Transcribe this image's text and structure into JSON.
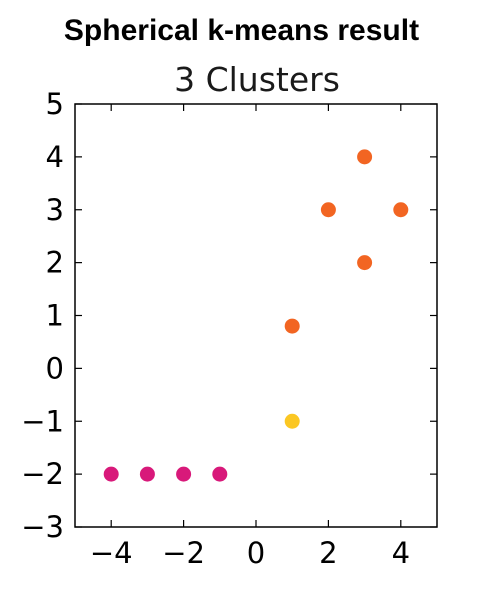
{
  "heading": "Spherical k-means result",
  "chart_data": {
    "type": "scatter",
    "title": "3 Clusters",
    "xlabel": "",
    "ylabel": "",
    "xlim": [
      -5,
      5
    ],
    "ylim": [
      -3,
      5
    ],
    "xticks": [
      -4,
      -2,
      0,
      2,
      4
    ],
    "yticks": [
      -3,
      -2,
      -1,
      0,
      1,
      2,
      3,
      4,
      5
    ],
    "grid": false,
    "series": [
      {
        "color": "#d8197a",
        "x": [
          -4,
          -3,
          -2,
          -1
        ],
        "y": [
          -2,
          -2,
          -2,
          -2
        ]
      },
      {
        "color": "#fbc723",
        "x": [
          1
        ],
        "y": [
          -1
        ]
      },
      {
        "color": "#f26522",
        "x": [
          1,
          2,
          3,
          3,
          4
        ],
        "y": [
          0.8,
          3,
          4,
          2,
          3
        ]
      }
    ]
  }
}
